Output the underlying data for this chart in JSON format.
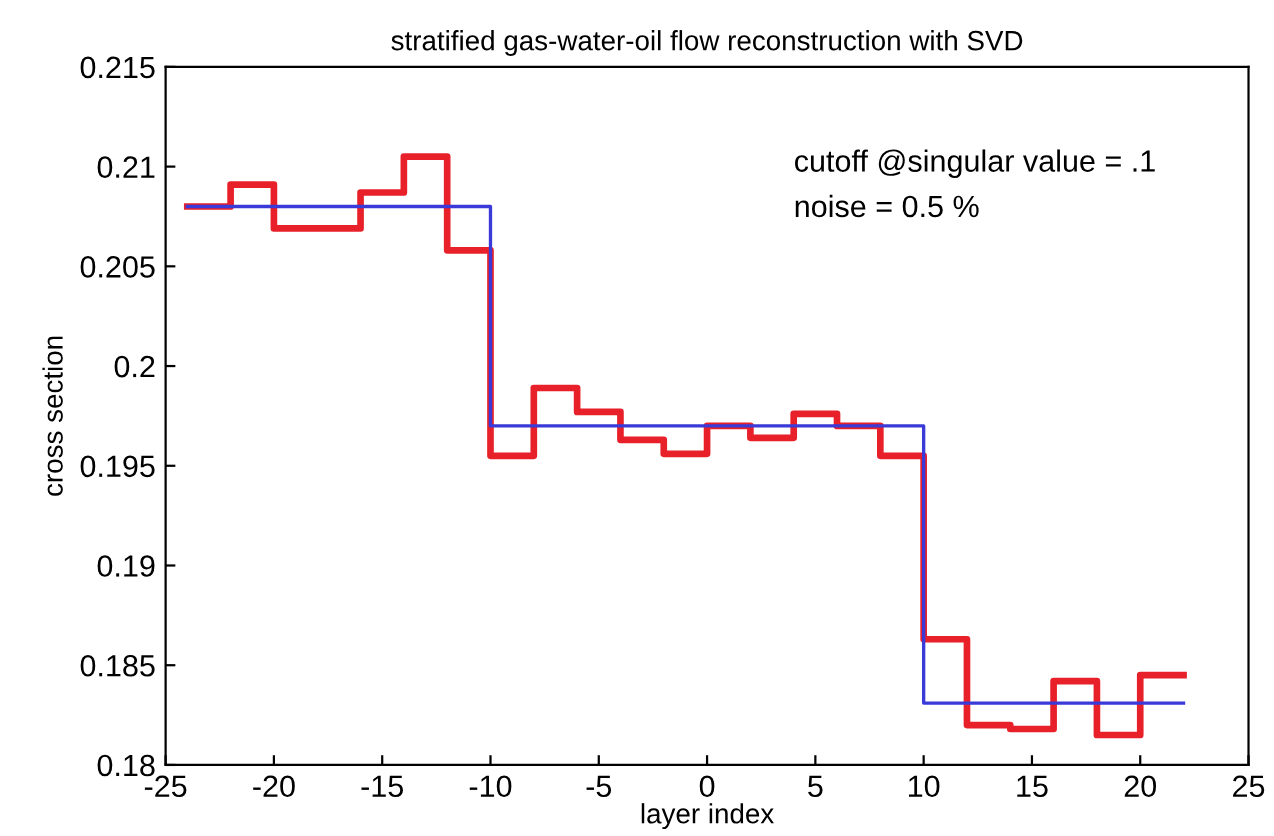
{
  "chart_data": {
    "type": "step",
    "title": "stratified gas-water-oil flow reconstruction with SVD",
    "xlabel": "layer index",
    "ylabel": "cross section",
    "series": [
      {
        "color": "#e8202a",
        "x": [
          -24,
          -22,
          -20,
          -18,
          -16,
          -14,
          -12,
          -10,
          -8,
          -6,
          -4,
          -2,
          0,
          2,
          4,
          6,
          8,
          10,
          12,
          14,
          16,
          18,
          20,
          22
        ],
        "values": [
          0.208,
          0.2091,
          0.2069,
          0.2069,
          0.2087,
          0.2105,
          0.2058,
          0.1955,
          0.1989,
          0.1977,
          0.1963,
          0.1956,
          0.197,
          0.1964,
          0.1976,
          0.197,
          0.1955,
          0.1863,
          0.182,
          0.1818,
          0.1842,
          0.1815,
          0.1845,
          0.1845
        ]
      },
      {
        "color": "#3a3ad8",
        "x": [
          -24,
          -10,
          10,
          22
        ],
        "values": [
          0.208,
          0.197,
          0.1831,
          0.1831
        ]
      }
    ],
    "annotations": [
      "cutoff @singular value = .1",
      "noise = 0.5 %"
    ],
    "xlim": [
      -25,
      25
    ],
    "xticks": [
      -25,
      -20,
      -15,
      -10,
      -5,
      0,
      5,
      10,
      15,
      20,
      25
    ],
    "ylim": [
      0.18,
      0.215
    ],
    "yticks": [
      0.18,
      0.185,
      0.19,
      0.195,
      0.2,
      0.205,
      0.21,
      0.215
    ],
    "grid": false
  }
}
